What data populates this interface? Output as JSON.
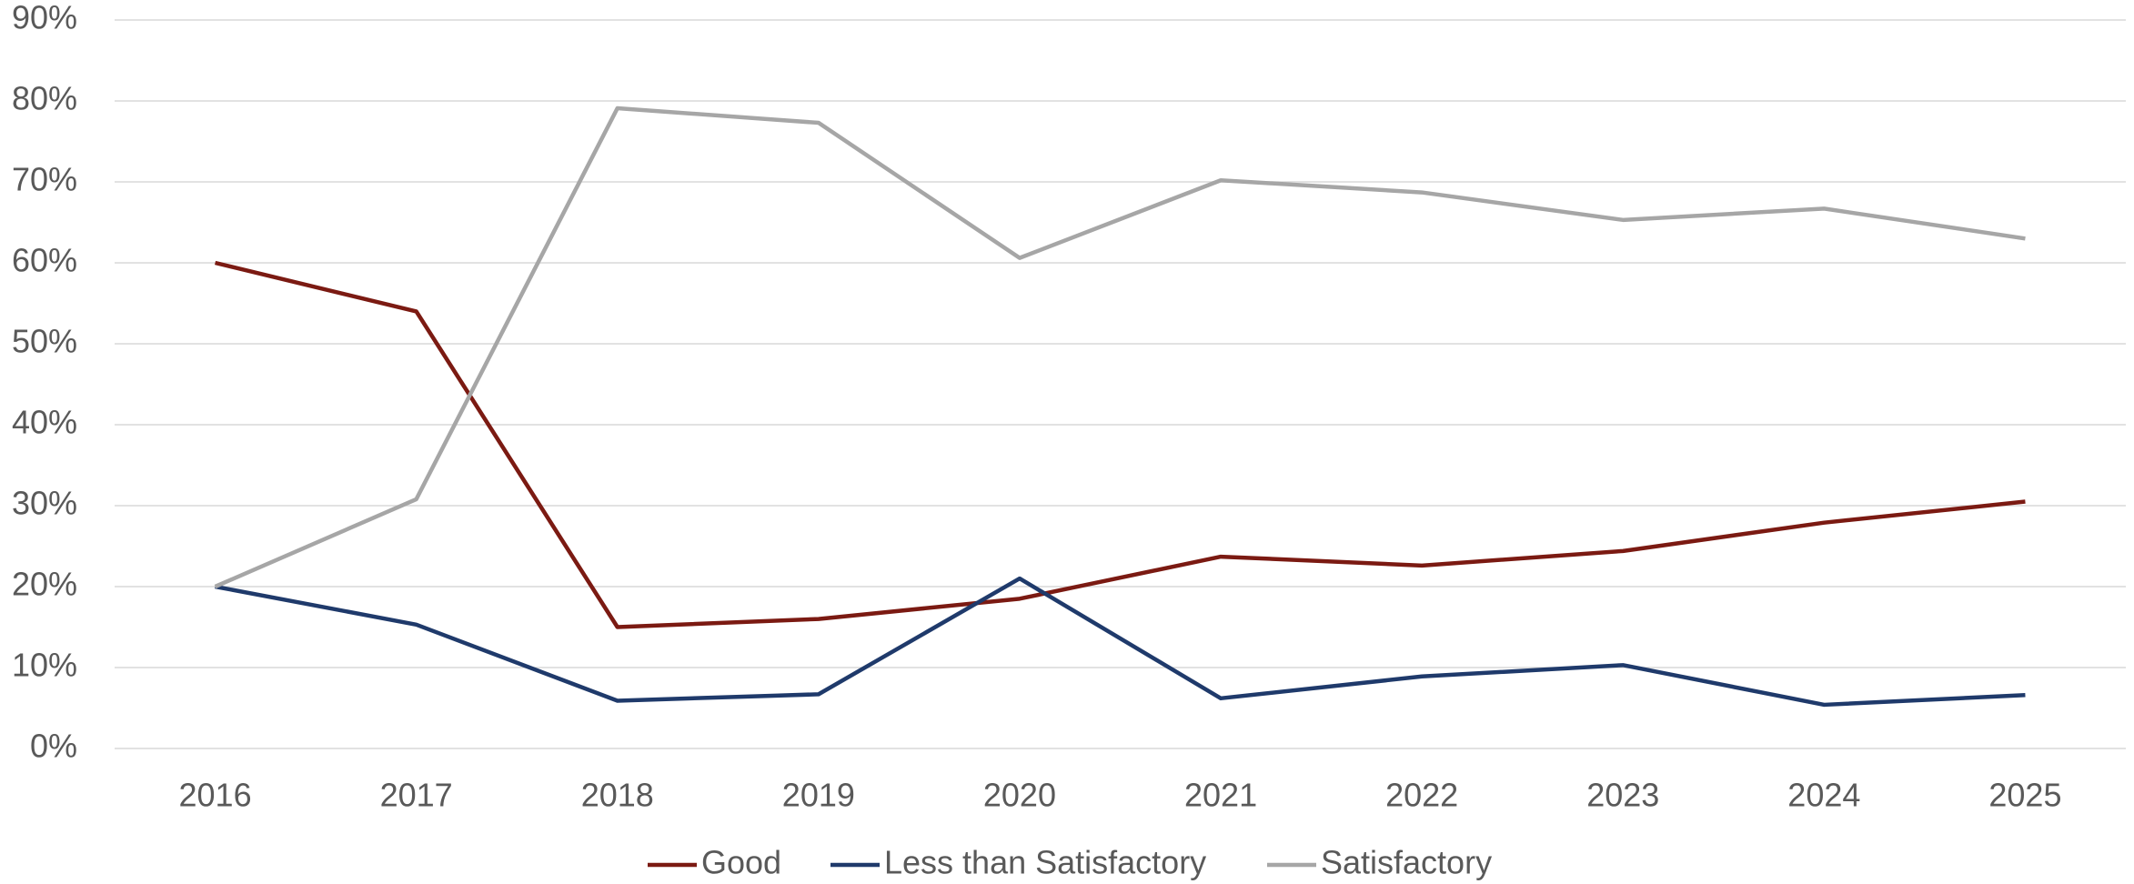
{
  "chart_data": {
    "type": "line",
    "categories": [
      "2016",
      "2017",
      "2018",
      "2019",
      "2020",
      "2021",
      "2022",
      "2023",
      "2024",
      "2025"
    ],
    "series": [
      {
        "name": "Good",
        "color": "#7b1a12",
        "values": [
          60,
          54,
          15,
          16,
          18.5,
          23.7,
          22.6,
          24.4,
          27.9,
          30.5
        ]
      },
      {
        "name": "Less than Satisfactory",
        "color": "#1f3a6b",
        "values": [
          20,
          15.3,
          5.9,
          6.7,
          21,
          6.2,
          8.9,
          10.3,
          5.4,
          6.6
        ]
      },
      {
        "name": "Satisfactory",
        "color": "#a6a6a6",
        "values": [
          20,
          30.8,
          79.1,
          77.3,
          60.6,
          70.2,
          68.7,
          65.3,
          66.7,
          63
        ]
      }
    ],
    "ylim": [
      0,
      90
    ],
    "yticks": [
      {
        "value": 0,
        "label": "0%"
      },
      {
        "value": 10,
        "label": "10%"
      },
      {
        "value": 20,
        "label": "20%"
      },
      {
        "value": 30,
        "label": "30%"
      },
      {
        "value": 40,
        "label": "40%"
      },
      {
        "value": 50,
        "label": "50%"
      },
      {
        "value": 60,
        "label": "60%"
      },
      {
        "value": 70,
        "label": "70%"
      },
      {
        "value": 80,
        "label": "80%"
      },
      {
        "value": 90,
        "label": "90%"
      }
    ],
    "grid": true,
    "legend": "bottom"
  }
}
